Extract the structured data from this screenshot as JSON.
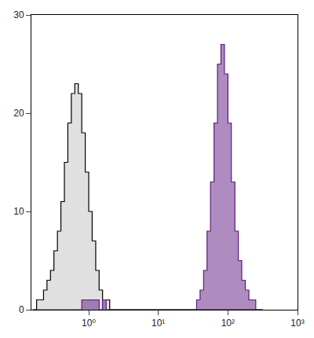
{
  "chart_data": {
    "type": "histogram",
    "log": "x",
    "bins": [
      0.158,
      0.178,
      0.2,
      0.224,
      0.251,
      0.282,
      0.316,
      0.355,
      0.398,
      0.447,
      0.501,
      0.562,
      0.631,
      0.708,
      0.794,
      0.891,
      1,
      1.12,
      1.26,
      1.41,
      1.58,
      1.78,
      2,
      2.24,
      2.51,
      2.82,
      3.16,
      3.55,
      3.98,
      4.47,
      5.01,
      5.62,
      6.31,
      7.08,
      7.94,
      8.91,
      10,
      11.2,
      12.6,
      14.1,
      15.8,
      17.8,
      20,
      22.4,
      25.1,
      28.2,
      31.6,
      35.5,
      39.8,
      44.7,
      50.1,
      56.2,
      63.1,
      70.8,
      79.4,
      89.1,
      100,
      112,
      126,
      141,
      158,
      178,
      200,
      224,
      251,
      282,
      316
    ],
    "series": [
      {
        "color": "#000000",
        "values": [
          0,
          1,
          1,
          2,
          3,
          4,
          6,
          8,
          11,
          15,
          19,
          22,
          23,
          22,
          18,
          14,
          10,
          7,
          4,
          2,
          1,
          1,
          0,
          0,
          0,
          0,
          0,
          0,
          0,
          0,
          0,
          0,
          0,
          0,
          0,
          0,
          0,
          0,
          0,
          0,
          0,
          0,
          0,
          0,
          0,
          0,
          0,
          0,
          0,
          0,
          0,
          0,
          0,
          0,
          0,
          0,
          0,
          0,
          0,
          0,
          0,
          0,
          0,
          0,
          0,
          0
        ]
      },
      {
        "color": "#5e1a80",
        "values": [
          0,
          0,
          0,
          0,
          0,
          0,
          0,
          0,
          0,
          0,
          0,
          0,
          0,
          0,
          1,
          1,
          1,
          1,
          1,
          0,
          1,
          0,
          0,
          0,
          0,
          0,
          0,
          0,
          0,
          0,
          0,
          0,
          0,
          0,
          0,
          0,
          0,
          0,
          0,
          0,
          0,
          0,
          0,
          0,
          0,
          0,
          0,
          1,
          2,
          4,
          8,
          13,
          19,
          25,
          27,
          24,
          19,
          13,
          8,
          5,
          3,
          2,
          1,
          1,
          0,
          0
        ]
      }
    ],
    "xlim": [
      0.15,
      1000
    ],
    "xticks": [
      {
        "value": 1,
        "label": "10⁰"
      },
      {
        "value": 10,
        "label": "10¹"
      },
      {
        "value": 100,
        "label": "10²"
      },
      {
        "value": 1000,
        "label": "10³"
      }
    ],
    "ylim": [
      0,
      30
    ],
    "yticks": [
      0,
      10,
      20,
      30
    ],
    "grid": false
  }
}
